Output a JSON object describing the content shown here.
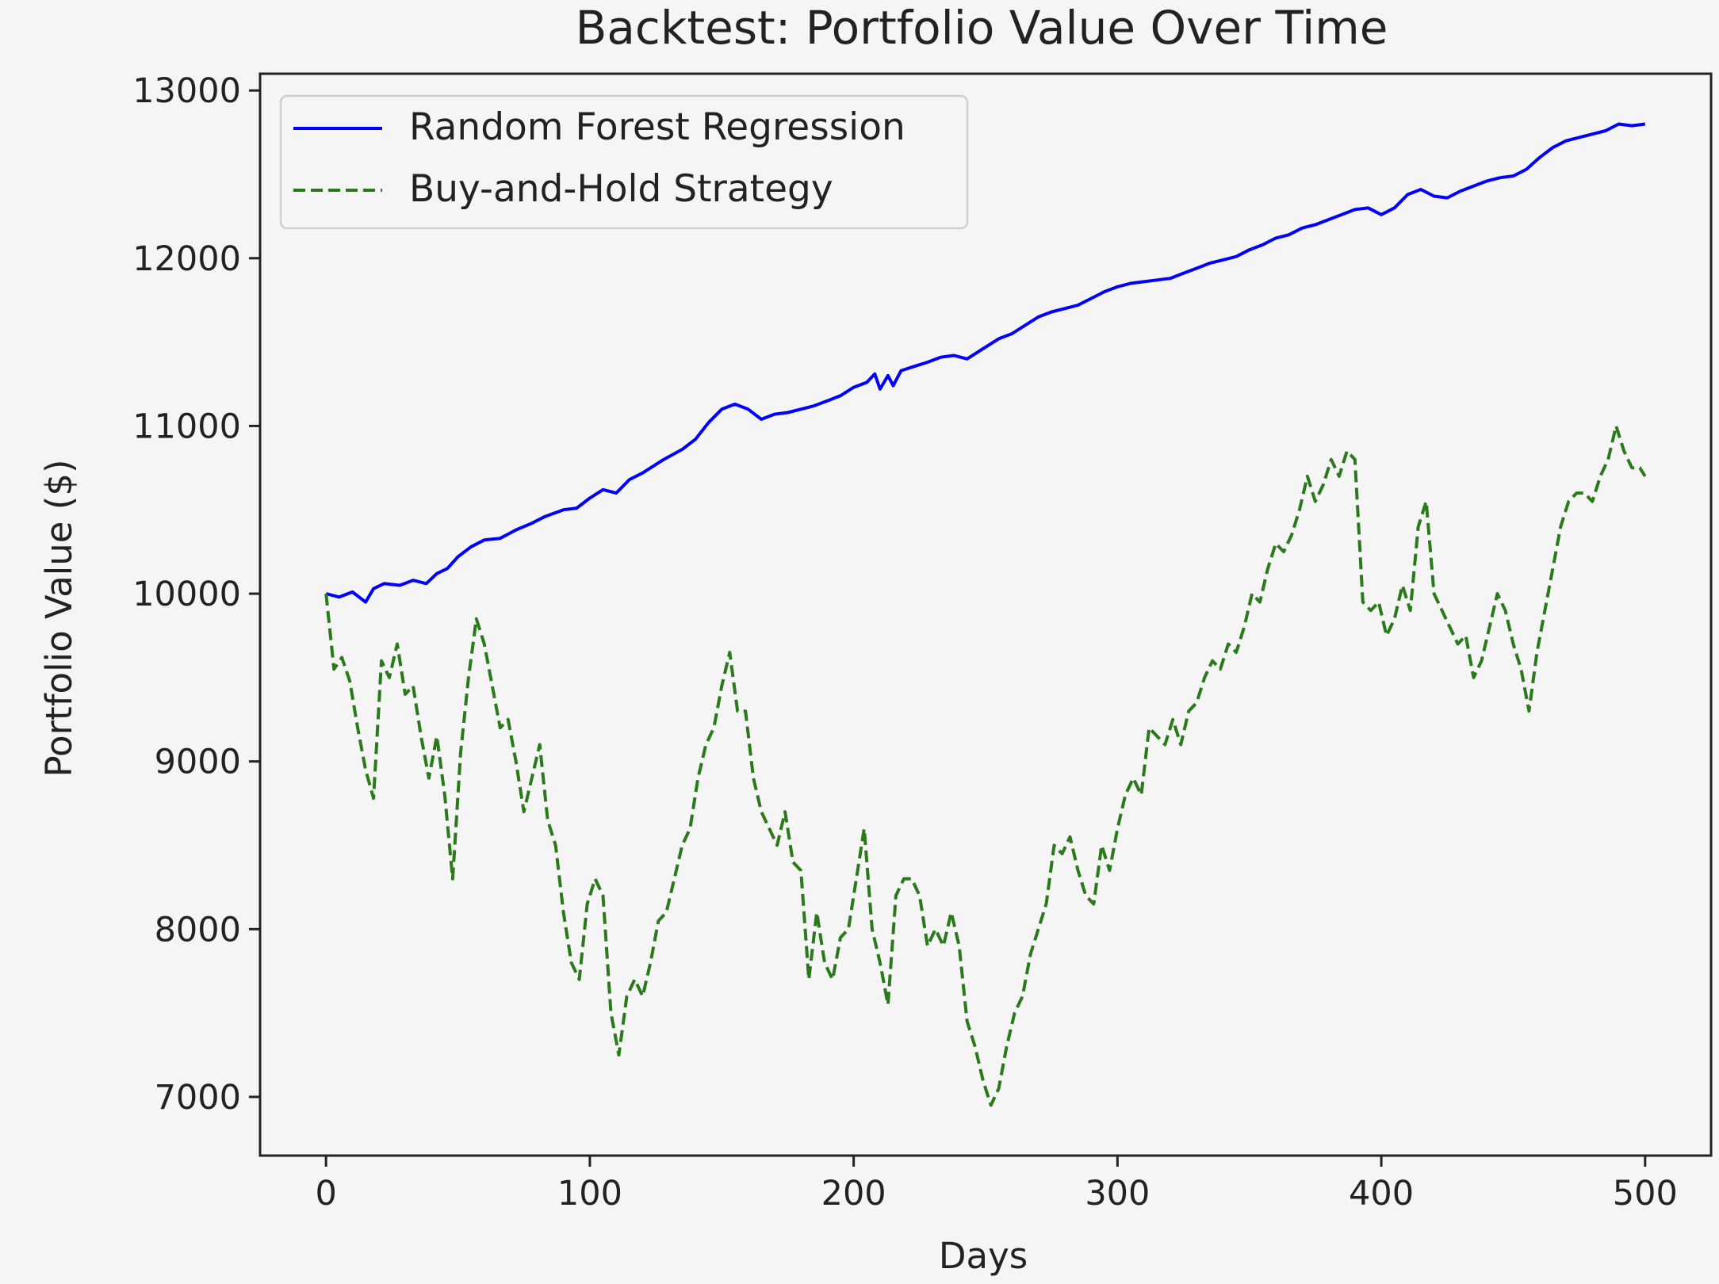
{
  "chart_data": {
    "type": "line",
    "title": "Backtest: Portfolio Value Over Time",
    "xlabel": "Days",
    "ylabel": "Portfolio Value ($)",
    "xlim": [
      -25,
      525
    ],
    "ylim": [
      6650,
      13100
    ],
    "xticks": [
      0,
      100,
      200,
      300,
      400,
      500
    ],
    "yticks": [
      7000,
      8000,
      9000,
      10000,
      11000,
      12000,
      13000
    ],
    "legend_position": "upper-left",
    "grid": false,
    "series": [
      {
        "name": "Random Forest Regression",
        "color": "#0000ff",
        "style": "solid",
        "x": [
          0,
          5,
          10,
          15,
          18,
          22,
          28,
          33,
          38,
          42,
          46,
          50,
          55,
          60,
          66,
          72,
          78,
          83,
          90,
          95,
          100,
          105,
          110,
          115,
          120,
          128,
          135,
          140,
          145,
          150,
          155,
          160,
          165,
          170,
          175,
          180,
          185,
          190,
          195,
          200,
          205,
          208,
          210,
          213,
          215,
          218,
          222,
          228,
          233,
          238,
          243,
          248,
          255,
          260,
          265,
          270,
          275,
          280,
          285,
          290,
          295,
          300,
          305,
          310,
          315,
          320,
          325,
          330,
          335,
          340,
          345,
          350,
          355,
          360,
          365,
          370,
          375,
          380,
          385,
          390,
          395,
          400,
          405,
          410,
          415,
          420,
          425,
          430,
          435,
          440,
          445,
          450,
          455,
          460,
          465,
          470,
          475,
          480,
          485,
          490,
          495,
          500
        ],
        "values": [
          10000,
          9980,
          10010,
          9950,
          10030,
          10060,
          10050,
          10080,
          10060,
          10120,
          10150,
          10220,
          10280,
          10320,
          10330,
          10380,
          10420,
          10460,
          10500,
          10510,
          10570,
          10620,
          10600,
          10680,
          10720,
          10800,
          10860,
          10920,
          11020,
          11100,
          11130,
          11100,
          11040,
          11070,
          11080,
          11100,
          11120,
          11150,
          11180,
          11230,
          11260,
          11310,
          11220,
          11300,
          11240,
          11330,
          11350,
          11380,
          11410,
          11420,
          11400,
          11450,
          11520,
          11550,
          11600,
          11650,
          11680,
          11700,
          11720,
          11760,
          11800,
          11830,
          11850,
          11860,
          11870,
          11880,
          11910,
          11940,
          11970,
          11990,
          12010,
          12050,
          12080,
          12120,
          12140,
          12180,
          12200,
          12230,
          12260,
          12290,
          12300,
          12260,
          12300,
          12380,
          12410,
          12370,
          12360,
          12400,
          12430,
          12460,
          12480,
          12490,
          12530,
          12600,
          12660,
          12700,
          12720,
          12740,
          12760,
          12800,
          12790,
          12800
        ]
      },
      {
        "name": "Buy-and-Hold Strategy",
        "color": "#2a7a1b",
        "style": "dashed",
        "x": [
          0,
          3,
          6,
          9,
          12,
          15,
          18,
          21,
          24,
          27,
          30,
          33,
          36,
          39,
          42,
          45,
          48,
          51,
          54,
          57,
          60,
          63,
          66,
          69,
          72,
          75,
          78,
          81,
          84,
          87,
          90,
          93,
          96,
          99,
          102,
          105,
          108,
          111,
          114,
          117,
          120,
          123,
          126,
          129,
          132,
          135,
          138,
          141,
          144,
          147,
          150,
          153,
          156,
          159,
          162,
          165,
          168,
          171,
          174,
          177,
          180,
          183,
          186,
          189,
          192,
          195,
          198,
          201,
          204,
          207,
          210,
          213,
          216,
          219,
          222,
          225,
          228,
          231,
          234,
          237,
          240,
          243,
          246,
          249,
          252,
          255,
          258,
          261,
          264,
          267,
          270,
          273,
          276,
          279,
          282,
          285,
          288,
          291,
          294,
          297,
          300,
          303,
          306,
          309,
          312,
          315,
          318,
          321,
          324,
          327,
          330,
          333,
          336,
          339,
          342,
          345,
          348,
          351,
          354,
          357,
          360,
          363,
          366,
          369,
          372,
          375,
          378,
          381,
          384,
          387,
          390,
          393,
          396,
          399,
          402,
          405,
          408,
          411,
          414,
          417,
          420,
          423,
          426,
          429,
          432,
          435,
          438,
          441,
          444,
          447,
          450,
          453,
          456,
          459,
          462,
          465,
          468,
          471,
          474,
          477,
          480,
          483,
          486,
          489,
          492,
          495,
          498,
          500
        ],
        "values": [
          10000,
          9550,
          9620,
          9480,
          9200,
          8950,
          8780,
          9600,
          9500,
          9700,
          9400,
          9450,
          9150,
          8900,
          9150,
          8800,
          8300,
          9050,
          9500,
          9850,
          9700,
          9450,
          9200,
          9250,
          9000,
          8700,
          8900,
          9100,
          8650,
          8500,
          8100,
          7800,
          7700,
          8150,
          8300,
          8200,
          7500,
          7250,
          7600,
          7700,
          7600,
          7800,
          8050,
          8100,
          8300,
          8500,
          8600,
          8900,
          9100,
          9200,
          9450,
          9650,
          9300,
          9300,
          8900,
          8700,
          8600,
          8500,
          8700,
          8400,
          8350,
          7700,
          8100,
          7800,
          7700,
          7950,
          8000,
          8300,
          8600,
          8000,
          7800,
          7550,
          8200,
          8300,
          8300,
          8200,
          7900,
          8000,
          7900,
          8100,
          7900,
          7450,
          7300,
          7100,
          6950,
          7050,
          7300,
          7500,
          7600,
          7850,
          8000,
          8150,
          8500,
          8450,
          8550,
          8350,
          8200,
          8150,
          8500,
          8350,
          8600,
          8800,
          8900,
          8800,
          9200,
          9150,
          9100,
          9250,
          9100,
          9300,
          9350,
          9500,
          9600,
          9550,
          9700,
          9650,
          9800,
          10000,
          9950,
          10150,
          10300,
          10250,
          10350,
          10500,
          10700,
          10550,
          10650,
          10800,
          10700,
          10850,
          10800,
          9950,
          9900,
          9950,
          9750,
          9850,
          10050,
          9900,
          10400,
          10550,
          10000,
          9900,
          9800,
          9700,
          9750,
          9500,
          9600,
          9800,
          10000,
          9900,
          9700,
          9550,
          9300,
          9650,
          9900,
          10150,
          10400,
          10550,
          10600,
          10600,
          10550,
          10700,
          10800,
          11000,
          10850,
          10750,
          10750,
          10700
        ]
      }
    ]
  }
}
